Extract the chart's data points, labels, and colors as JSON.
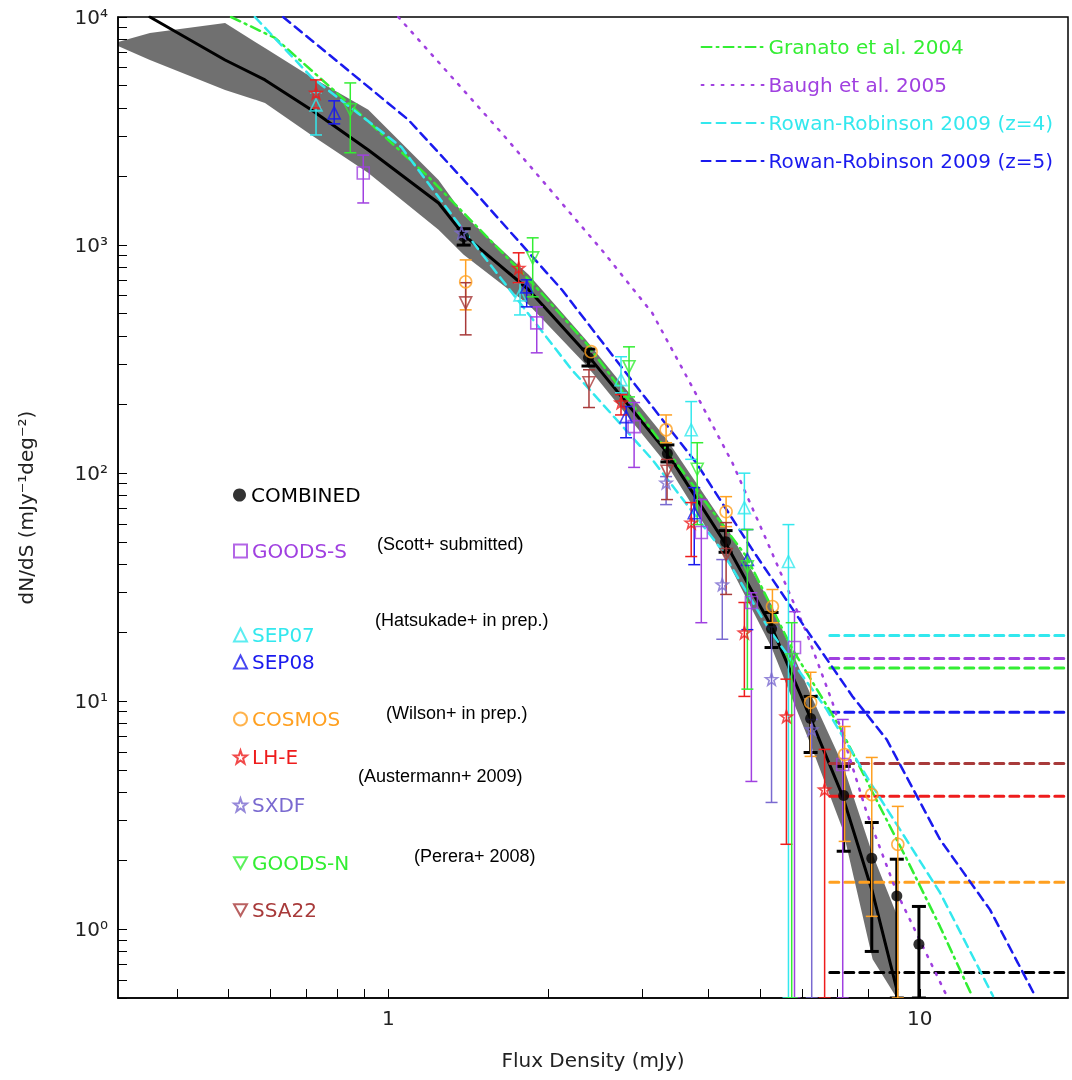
{
  "chart_data": {
    "type": "scatter",
    "xlabel": "Flux Density (mJy)",
    "ylabel": "dN/dS (mJy⁻¹deg⁻²)",
    "log": "xy",
    "legend": "top right",
    "xlim": [
      0.31,
      19
    ],
    "ylim": [
      0.5,
      10000
    ],
    "xticks": [
      {
        "value": 0.4,
        "label": null
      },
      {
        "value": 0.5,
        "label": null
      },
      {
        "value": 0.6,
        "label": null
      },
      {
        "value": 0.7,
        "label": null
      },
      {
        "value": 0.8,
        "label": null
      },
      {
        "value": 0.9,
        "label": null
      },
      1,
      {
        "value": 2,
        "label": null
      },
      {
        "value": 3,
        "label": null
      },
      {
        "value": 4,
        "label": null
      },
      {
        "value": 5,
        "label": null
      },
      {
        "value": 6,
        "label": null
      },
      {
        "value": 7,
        "label": null
      },
      {
        "value": 8,
        "label": null
      },
      {
        "value": 9,
        "label": null
      },
      10
    ],
    "yticks": [
      {
        "value": 0.5,
        "label": null
      },
      {
        "value": 0.6,
        "label": null
      },
      {
        "value": 0.7,
        "label": null
      },
      {
        "value": 0.8,
        "label": null
      },
      {
        "value": 0.9,
        "label": null
      },
      {
        "value": 1,
        "label": "10⁰"
      },
      {
        "value": 2,
        "label": null
      },
      {
        "value": 3,
        "label": null
      },
      {
        "value": 4,
        "label": null
      },
      {
        "value": 5,
        "label": null
      },
      {
        "value": 6,
        "label": null
      },
      {
        "value": 7,
        "label": null
      },
      {
        "value": 8,
        "label": null
      },
      {
        "value": 9,
        "label": null
      },
      {
        "value": 10,
        "label": "10¹"
      },
      {
        "value": 20,
        "label": null
      },
      {
        "value": 30,
        "label": null
      },
      {
        "value": 40,
        "label": null
      },
      {
        "value": 50,
        "label": null
      },
      {
        "value": 60,
        "label": null
      },
      {
        "value": 70,
        "label": null
      },
      {
        "value": 80,
        "label": null
      },
      {
        "value": 90,
        "label": null
      },
      {
        "value": 100,
        "label": "10²"
      },
      {
        "value": 200,
        "label": null
      },
      {
        "value": 300,
        "label": null
      },
      {
        "value": 400,
        "label": null
      },
      {
        "value": 500,
        "label": null
      },
      {
        "value": 600,
        "label": null
      },
      {
        "value": 700,
        "label": null
      },
      {
        "value": 800,
        "label": null
      },
      {
        "value": 900,
        "label": null
      },
      {
        "value": 1000,
        "label": "10³"
      },
      {
        "value": 2000,
        "label": null
      },
      {
        "value": 3000,
        "label": null
      },
      {
        "value": 4000,
        "label": null
      },
      {
        "value": 5000,
        "label": null
      },
      {
        "value": 6000,
        "label": null
      },
      {
        "value": 7000,
        "label": null
      },
      {
        "value": 8000,
        "label": null
      },
      {
        "value": 9000,
        "label": null
      },
      {
        "value": 10000,
        "label": "10⁴"
      }
    ],
    "annotations": [
      "(Scott+ submitted)",
      "(Hatsukade+ in prep.)",
      "(Wilson+ in prep.)",
      "(Austermann+ 2009)",
      "(Perera+ 2008)"
    ],
    "series": [
      {
        "type": "line",
        "color": "#000000",
        "line_style": "solid",
        "x": [
          0.31,
          0.356,
          0.493,
          0.586,
          0.716,
          0.917,
          1.243,
          1.386,
          1.837,
          2.353,
          3.345,
          4.38,
          5.26,
          6.23,
          7.16,
          8.15,
          9.05
        ],
        "values": [
          null,
          10000,
          6480,
          5300,
          3920,
          2610,
          1530,
          1109,
          637,
          337,
          123,
          46.2,
          21.2,
          8.4,
          3.83,
          1.45,
          0.546
        ],
        "lower": [
          7460,
          6480,
          4790,
          4200,
          3040,
          2070,
          1166,
          906,
          547,
          299,
          109,
          39.7,
          17.2,
          6.46,
          2.74,
          0.74,
          0.5
        ],
        "upper": [
          7770,
          8510,
          9410,
          7310,
          5460,
          3920,
          1930,
          1358,
          741,
          385,
          140,
          55.4,
          26.5,
          10.7,
          5.28,
          2.13,
          1.16
        ]
      },
      {
        "name": "COMBINED",
        "color": "#000000",
        "marker": "circle",
        "x": [
          1.386,
          2.38,
          3.35,
          4.31,
          5.26,
          6.23,
          7.19,
          8.12,
          9.05,
          9.96
        ],
        "values": [
          1087,
          321,
          122,
          50.1,
          20.8,
          8.4,
          3.86,
          2.05,
          1.4,
          0.86
        ],
        "errors": [
          [
            1000,
            1180
          ],
          [
            295,
            350
          ],
          [
            112,
            133
          ],
          [
            45,
            56
          ],
          [
            17.2,
            24.5
          ],
          [
            5.96,
            10.5
          ],
          [
            2.2,
            5.18
          ],
          [
            0.8,
            2.94
          ],
          [
            0.5,
            2.03
          ],
          [
            0.5,
            1.26
          ]
        ]
      },
      {
        "name": "GOODS-S",
        "color": "#a040e0",
        "marker": "square",
        "x": [
          0.897,
          1.902,
          2.9,
          3.88,
          4.82,
          5.81,
          7.16
        ],
        "values": [
          2070,
          456,
          160,
          54.9,
          27.1,
          17.2,
          5.28
        ],
        "errors": [
          [
            1530,
            2480
          ],
          [
            337,
            536
          ],
          [
            106,
            204
          ],
          [
            22.1,
            76.6
          ],
          [
            4.45,
            29.9
          ],
          [
            0.5,
            24.7
          ],
          [
            0.5,
            8.32
          ]
        ]
      },
      {
        "name": "SEP07",
        "color": "#33e8ee",
        "marker": "triangle",
        "x": [
          0.731,
          1.769,
          2.74,
          3.714,
          4.676,
          5.66
        ],
        "values": [
          4120,
          605,
          257,
          155,
          70.6,
          41
        ],
        "errors": [
          [
            3040,
            4650
          ],
          [
            494,
            684
          ],
          [
            225,
            324
          ],
          [
            115,
            206
          ],
          [
            56.6,
            100
          ],
          [
            0.5,
            59.5
          ]
        ]
      },
      {
        "name": "SEP08",
        "color": "#1a1aee",
        "marker": "triangle",
        "x": [
          0.791,
          1.821,
          2.801,
          3.763,
          4.737
        ],
        "values": [
          3800,
          656,
          177,
          67.1,
          41.8
        ],
        "errors": [
          [
            3400,
            4290
          ],
          [
            536,
            704
          ],
          [
            143,
            196
          ],
          [
            39.7,
            86.4
          ],
          [
            20.6,
            56.6
          ]
        ]
      },
      {
        "name": "COSMOS",
        "color": "#ffa020",
        "marker": "circle",
        "x": [
          1.398,
          2.407,
          3.331,
          4.32,
          5.28,
          6.23,
          7.22,
          8.12,
          9.09
        ],
        "values": [
          690,
          341,
          155,
          67.8,
          26,
          9.88,
          5.84,
          3.9,
          2.36
        ],
        "errors": [
          [
            520,
            861
          ],
          null,
          [
            136,
            180
          ],
          [
            58.3,
            78.9
          ],
          [
            22.1,
            30.9
          ],
          [
            5.73,
            13.4
          ],
          [
            2.43,
            7.75
          ],
          [
            1.14,
            5.67
          ],
          [
            0.5,
            3.46
          ]
        ]
      },
      {
        "name": "LH-E",
        "color": "#ee1c1c",
        "marker": "star",
        "x": [
          0.731,
          1.759,
          2.74,
          3.714,
          4.676,
          5.61,
          6.62
        ],
        "values": [
          4650,
          794,
          204,
          60.7,
          20,
          8.57,
          4.1
        ],
        "errors": [
          [
            3990,
            5300
          ],
          [
            684,
            925
          ],
          [
            180,
            221
          ],
          [
            43.1,
            74.3
          ],
          [
            10.5,
            27.1
          ],
          [
            2.36,
            12.5
          ],
          [
            0.5,
            6.15
          ]
        ]
      },
      {
        "name": "SXDF",
        "color": "#7a6ad0",
        "marker": "star",
        "x": [
          1.373,
          3.331,
          4.249,
          5.26,
          6.26
        ],
        "values": [
          1132,
          90.8,
          32.5,
          12.5,
          7.52
        ],
        "errors": [
          null,
          [
            72.8,
            96.6
          ],
          [
            18.7,
            41.8
          ],
          [
            3.6,
            21.2
          ],
          [
            0.5,
            8.32
          ]
        ]
      },
      {
        "name": "GOODS-N",
        "color": "#33ee33",
        "marker": "triangle_down",
        "x": [
          0.848,
          1.869,
          2.837,
          3.812,
          4.737,
          5.74
        ],
        "values": [
          3920,
          879,
          293,
          104,
          38.9,
          15.2
        ],
        "errors": [
          [
            2540,
            5140
          ],
          [
            593,
            1076
          ],
          [
            216,
            358
          ],
          [
            59.5,
            136
          ],
          [
            11.3,
            56.6
          ],
          [
            0.5,
            22.1
          ]
        ]
      },
      {
        "name": "SSA22",
        "color": "#a83a3a",
        "marker": "triangle_down",
        "x": [
          1.398,
          2.385,
          3.345,
          4.32
        ],
        "values": [
          558,
          249,
          102,
          44
        ],
        "errors": [
          [
            404,
            684
          ],
          [
            194,
            284
          ],
          [
            76.6,
            115
          ],
          [
            29.4,
            60.7
          ]
        ]
      },
      {
        "type": "line",
        "name": "Granato et al. 2004",
        "color": "#33ee33",
        "line_style": "dashdot",
        "x": [
          0.506,
          0.612,
          0.84,
          1.19,
          1.894,
          2.353,
          3.232,
          4.717,
          5.76,
          7.06,
          8.15,
          9.45,
          10.91,
          12.54
        ],
        "values": [
          10000,
          8090,
          4200,
          1990,
          656,
          373,
          140,
          43.1,
          16.9,
          7.75,
          3.98,
          2.03,
          1.03,
          0.51
        ]
      },
      {
        "type": "line",
        "name": "Baugh et al. 2005",
        "color": "#a040e0",
        "line_style": "dotted",
        "x": [
          1.044,
          1.634,
          2.52,
          3.135,
          3.73,
          4.44,
          5.21,
          6.12,
          6.85,
          7.94,
          9.05,
          11.24
        ],
        "values": [
          10000,
          3100,
          953,
          505,
          239,
          111,
          47.6,
          20,
          9.87,
          3.26,
          1.45,
          0.51
        ]
      },
      {
        "type": "line",
        "name": "Rowan-Robinson 2009 (z=4)",
        "color": "#33e8ee",
        "line_style": "dashed",
        "x": [
          0.561,
          0.716,
          1.058,
          1.338,
          2.214,
          3.135,
          4.194,
          5.21,
          6.68,
          8.15,
          10.91,
          13.73
        ],
        "values": [
          10000,
          5460,
          2690,
          1290,
          284,
          115,
          47.6,
          20.6,
          9.2,
          4.23,
          1.45,
          0.51
        ]
      },
      {
        "type": "line",
        "name": "Rowan-Robinson 2009 (z=5)",
        "color": "#1a1aee",
        "line_style": "dashed",
        "x": [
          0.634,
          1.091,
          1.459,
          2.121,
          2.963,
          3.796,
          4.84,
          6.12,
          7.47,
          8.66,
          10.91,
          13.55,
          16.34
        ],
        "values": [
          10000,
          3540,
          1694,
          637,
          232,
          111,
          46.2,
          20.6,
          10.5,
          6.8,
          2.48,
          1.22,
          0.53
        ]
      },
      {
        "type": "line",
        "color": "#33e8ee",
        "line_style": "dashed",
        "x": [
          6.77,
          19
        ],
        "values": [
          19.4,
          19.4
        ]
      },
      {
        "type": "line",
        "color": "#a040e0",
        "line_style": "dashed",
        "x": [
          6.77,
          19
        ],
        "values": [
          15.4,
          15.4
        ]
      },
      {
        "type": "line",
        "color": "#33ee33",
        "line_style": "dashed",
        "x": [
          6.77,
          19
        ],
        "values": [
          14,
          14
        ]
      },
      {
        "type": "line",
        "color": "#1a1aee",
        "line_style": "dashed",
        "x": [
          6.77,
          19
        ],
        "values": [
          8.94,
          8.94
        ]
      },
      {
        "type": "line",
        "color": "#a83a3a",
        "line_style": "dashed",
        "x": [
          6.77,
          19
        ],
        "values": [
          5.34,
          5.34
        ]
      },
      {
        "type": "line",
        "color": "#ee1c1c",
        "line_style": "dashed",
        "x": [
          6.77,
          19
        ],
        "values": [
          3.83,
          3.83
        ]
      },
      {
        "type": "line",
        "color": "#ffa020",
        "line_style": "dashed",
        "x": [
          6.77,
          19
        ],
        "values": [
          1.61,
          1.61
        ]
      },
      {
        "type": "line",
        "color": "#000000",
        "line_style": "dashed",
        "x": [
          6.77,
          19
        ],
        "values": [
          0.647,
          0.647
        ]
      }
    ]
  }
}
